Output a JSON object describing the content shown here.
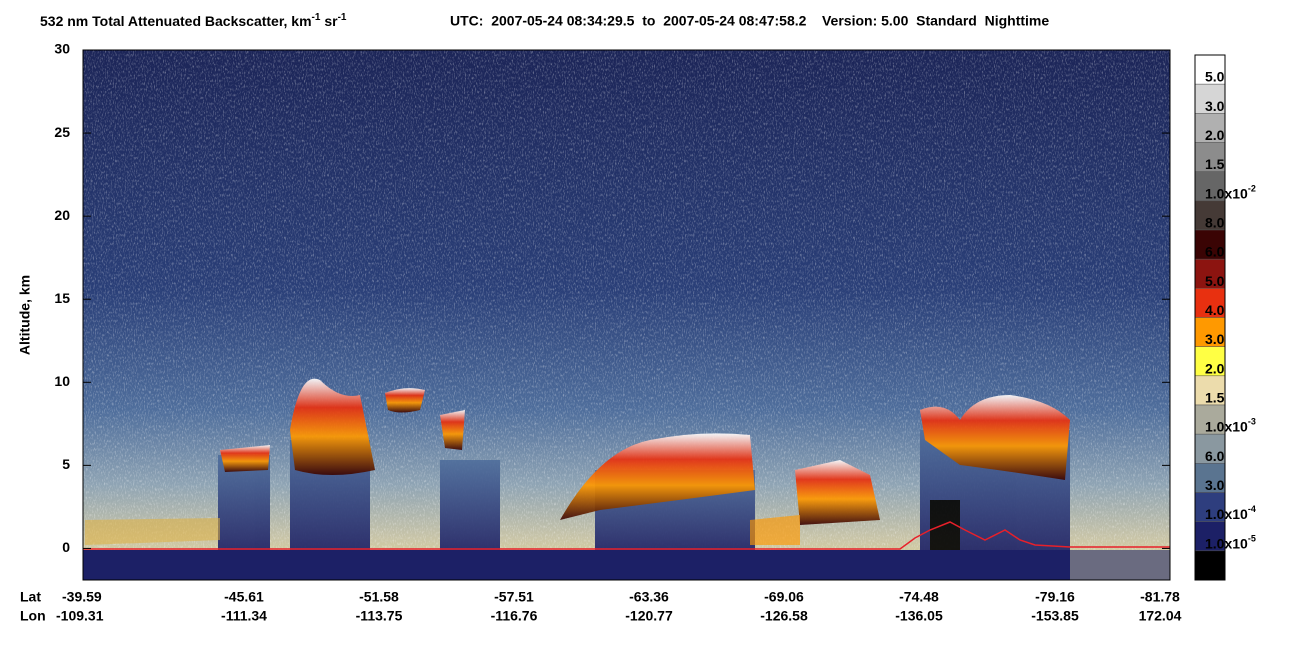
{
  "chart_data": {
    "type": "heatmap",
    "title": {
      "text": "532 nm Total Attenuated Backscatter, km",
      "sup1": "-1",
      "mid": " sr",
      "sup2": "-1"
    },
    "subtitle": "UTC:  2007-05-24 08:34:29.5  to  2007-05-24 08:47:58.2    Version: 5.00  Standard  Nighttime",
    "ylabel": "Altitude, km",
    "ylim": [
      -1.9,
      30
    ],
    "yticks": [
      0,
      5,
      10,
      15,
      20,
      25,
      30
    ],
    "xaxis_labels": [
      "Lat",
      "Lon"
    ],
    "lat": [
      "-39.59",
      "-45.61",
      "-51.58",
      "-57.51",
      "-63.36",
      "-69.06",
      "-74.48",
      "-79.16",
      "-81.78"
    ],
    "lon": [
      "-109.31",
      "-111.34",
      "-113.75",
      "-116.76",
      "-120.77",
      "-126.58",
      "-136.05",
      "-153.85",
      "172.04"
    ],
    "colorbar": {
      "labels": [
        {
          "text": "5.0"
        },
        {
          "text": "3.0"
        },
        {
          "text": "2.0"
        },
        {
          "text": "1.5"
        },
        {
          "text": "1.0x10",
          "sup": "-2"
        },
        {
          "text": "8.0"
        },
        {
          "text": "6.0"
        },
        {
          "text": "5.0"
        },
        {
          "text": "4.0"
        },
        {
          "text": "3.0"
        },
        {
          "text": "2.0"
        },
        {
          "text": "1.5"
        },
        {
          "text": "1.0x10",
          "sup": "-3"
        },
        {
          "text": "6.0"
        },
        {
          "text": "3.0"
        },
        {
          "text": "1.0x10",
          "sup": "-4"
        },
        {
          "text": "1.0x10",
          "sup": "-5"
        }
      ],
      "colors": [
        "#ffffff",
        "#d6d6d6",
        "#b0b0b0",
        "#8c8c8c",
        "#666666",
        "#453a36",
        "#3a0404",
        "#8c1410",
        "#e83010",
        "#ff9900",
        "#ffff44",
        "#ecdcac",
        "#aaaa9c",
        "#8a98a0",
        "#5a7490",
        "#2e3e7e",
        "#1c2066",
        "#000000"
      ]
    }
  }
}
